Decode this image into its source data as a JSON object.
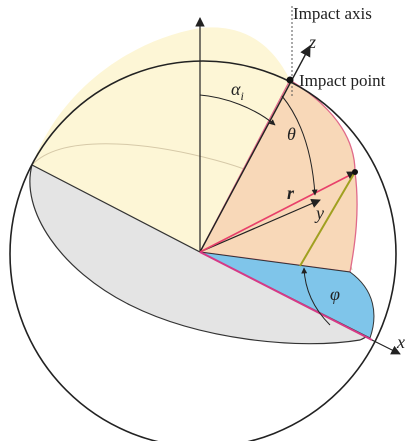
{
  "labels": {
    "impact_axis": "Impact axis",
    "impact_point": "Impact point",
    "z": "z",
    "y": "y",
    "x": "x",
    "alpha": "α",
    "alpha_sub": "i",
    "theta": "θ",
    "r": "r",
    "phi": "φ"
  },
  "colors": {
    "upper_hemisphere": "#fdf6d6",
    "wedge": "#f8d8b8",
    "lower_disc": "#e4e4e4",
    "phi_sector": "#7fc5ea",
    "x_axis": "#d63a86",
    "wedge_edge": "#e06a8a",
    "r_vector": "#e8406a",
    "projection": "#a0a020",
    "outline": "#222222"
  }
}
